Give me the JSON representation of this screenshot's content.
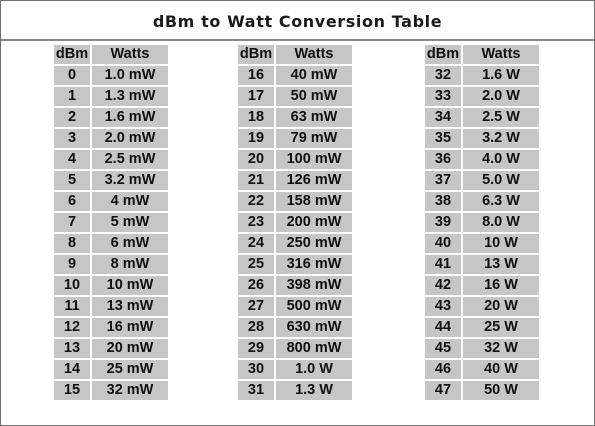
{
  "title": "dBm to Watt Conversion Table",
  "headers": {
    "dbm": "dBm",
    "watts": "Watts"
  },
  "columns": [
    {
      "rows": [
        {
          "dbm": "0",
          "watts": "1.0 mW"
        },
        {
          "dbm": "1",
          "watts": "1.3 mW"
        },
        {
          "dbm": "2",
          "watts": "1.6 mW"
        },
        {
          "dbm": "3",
          "watts": "2.0 mW"
        },
        {
          "dbm": "4",
          "watts": "2.5 mW"
        },
        {
          "dbm": "5",
          "watts": "3.2 mW"
        },
        {
          "dbm": "6",
          "watts": "4 mW"
        },
        {
          "dbm": "7",
          "watts": "5 mW"
        },
        {
          "dbm": "8",
          "watts": "6 mW"
        },
        {
          "dbm": "9",
          "watts": "8 mW"
        },
        {
          "dbm": "10",
          "watts": "10 mW"
        },
        {
          "dbm": "11",
          "watts": "13 mW"
        },
        {
          "dbm": "12",
          "watts": "16 mW"
        },
        {
          "dbm": "13",
          "watts": "20 mW"
        },
        {
          "dbm": "14",
          "watts": "25 mW"
        },
        {
          "dbm": "15",
          "watts": "32 mW"
        }
      ]
    },
    {
      "rows": [
        {
          "dbm": "16",
          "watts": "40 mW"
        },
        {
          "dbm": "17",
          "watts": "50 mW"
        },
        {
          "dbm": "18",
          "watts": "63 mW"
        },
        {
          "dbm": "19",
          "watts": "79 mW"
        },
        {
          "dbm": "20",
          "watts": "100 mW"
        },
        {
          "dbm": "21",
          "watts": "126 mW"
        },
        {
          "dbm": "22",
          "watts": "158 mW"
        },
        {
          "dbm": "23",
          "watts": "200 mW"
        },
        {
          "dbm": "24",
          "watts": "250 mW"
        },
        {
          "dbm": "25",
          "watts": "316 mW"
        },
        {
          "dbm": "26",
          "watts": "398 mW"
        },
        {
          "dbm": "27",
          "watts": "500 mW"
        },
        {
          "dbm": "28",
          "watts": "630 mW"
        },
        {
          "dbm": "29",
          "watts": "800 mW"
        },
        {
          "dbm": "30",
          "watts": "1.0 W"
        },
        {
          "dbm": "31",
          "watts": "1.3 W"
        }
      ]
    },
    {
      "rows": [
        {
          "dbm": "32",
          "watts": "1.6 W"
        },
        {
          "dbm": "33",
          "watts": "2.0 W"
        },
        {
          "dbm": "34",
          "watts": "2.5 W"
        },
        {
          "dbm": "35",
          "watts": "3.2 W"
        },
        {
          "dbm": "36",
          "watts": "4.0 W"
        },
        {
          "dbm": "37",
          "watts": "5.0 W"
        },
        {
          "dbm": "38",
          "watts": "6.3 W"
        },
        {
          "dbm": "39",
          "watts": "8.0 W"
        },
        {
          "dbm": "40",
          "watts": "10 W"
        },
        {
          "dbm": "41",
          "watts": "13 W"
        },
        {
          "dbm": "42",
          "watts": "16 W"
        },
        {
          "dbm": "43",
          "watts": "20 W"
        },
        {
          "dbm": "44",
          "watts": "25 W"
        },
        {
          "dbm": "45",
          "watts": "32 W"
        },
        {
          "dbm": "46",
          "watts": "40 W"
        },
        {
          "dbm": "47",
          "watts": "50 W"
        }
      ]
    }
  ]
}
